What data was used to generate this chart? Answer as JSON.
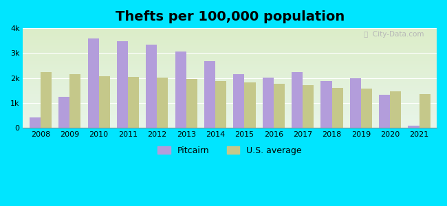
{
  "title": "Thefts per 100,000 population",
  "years": [
    2008,
    2009,
    2010,
    2011,
    2012,
    2013,
    2014,
    2015,
    2016,
    2017,
    2018,
    2019,
    2020,
    2021
  ],
  "pitcairn": [
    430,
    1250,
    3580,
    3480,
    3330,
    3080,
    2680,
    2170,
    2010,
    2230,
    1870,
    1980,
    1330,
    80
  ],
  "us_average": [
    2230,
    2150,
    2070,
    2050,
    2020,
    1960,
    1870,
    1820,
    1780,
    1730,
    1620,
    1580,
    1460,
    1350
  ],
  "pitcairn_color": "#b39ddb",
  "us_avg_color": "#c5c88a",
  "outer_bg": "#00e5ff",
  "bg_color_top": "#dcedc8",
  "bg_color_bottom": "#e8f5e9",
  "ylim": [
    0,
    4000
  ],
  "yticks": [
    0,
    1000,
    2000,
    3000,
    4000
  ],
  "ytick_labels": [
    "0",
    "1k",
    "2k",
    "3k",
    "4k"
  ],
  "legend_pitcairn": "Pitcairn",
  "legend_us": "U.S. average",
  "bar_width": 0.38,
  "title_fontsize": 14
}
